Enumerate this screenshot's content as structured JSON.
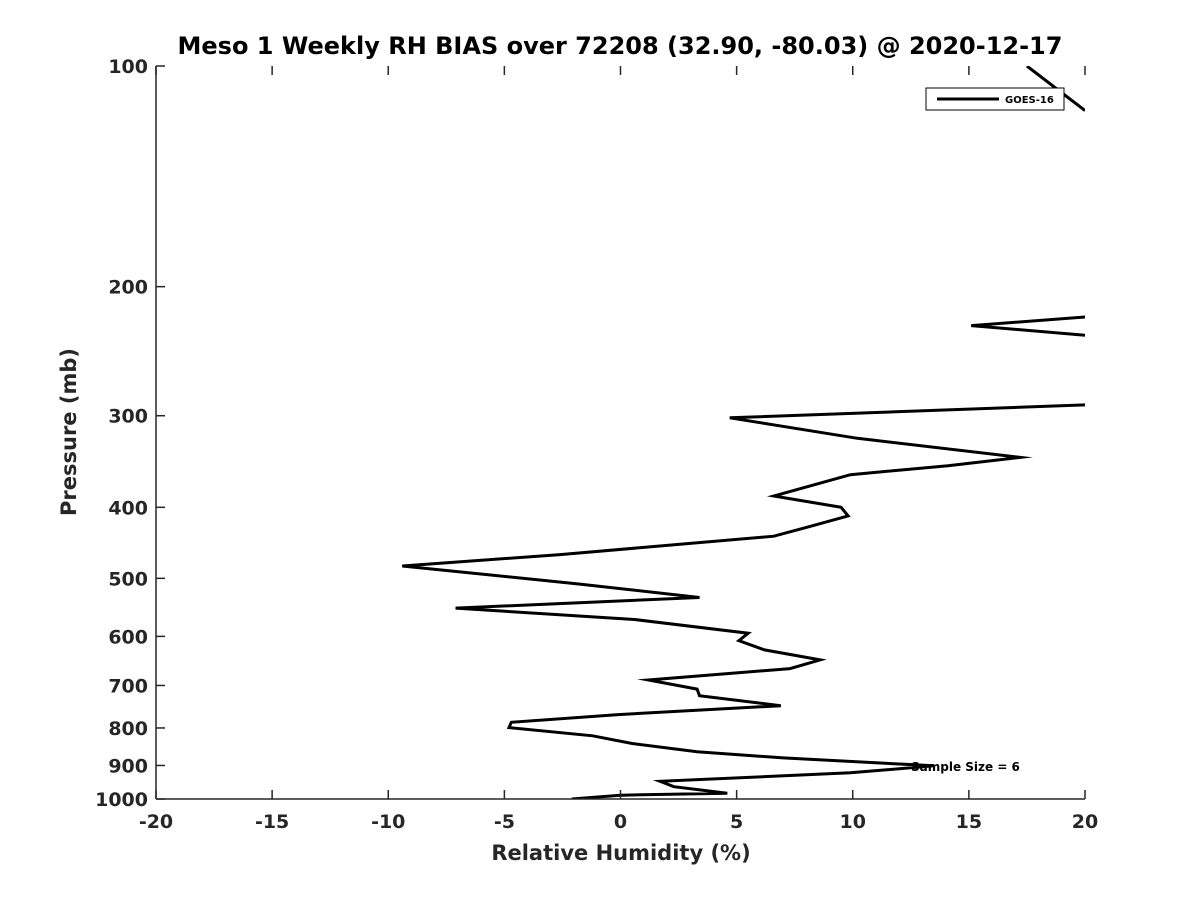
{
  "chart_data": {
    "type": "line",
    "title": "Meso 1 Weekly RH BIAS over 72208 (32.90, -80.03) @ 2020-12-17",
    "xlabel": "Relative Humidity (%)",
    "ylabel": "Pressure (mb)",
    "xlim": [
      -20,
      20
    ],
    "ylim": [
      100,
      1000
    ],
    "yscale": "log",
    "yreversed": true,
    "grid": false,
    "legend_placement": "top-right",
    "x_ticks": [
      "-20",
      "-15",
      "-10",
      "-5",
      "0",
      "5",
      "10",
      "15",
      "20"
    ],
    "y_ticks": [
      "100",
      "200",
      "300",
      "400",
      "500",
      "600",
      "700",
      "800",
      "900",
      "1000"
    ],
    "annotation": "Sample Size = 6",
    "series": [
      {
        "name": "GOES-16",
        "color": "#000000",
        "segments": [
          [
            {
              "x": 17.5,
              "y": 100
            },
            {
              "x": 20.0,
              "y": 115
            }
          ],
          [
            {
              "x": 20.0,
              "y": 220
            },
            {
              "x": 15.1,
              "y": 226
            },
            {
              "x": 20.0,
              "y": 233
            }
          ],
          [
            {
              "x": 20.0,
              "y": 290
            },
            {
              "x": 4.7,
              "y": 302
            },
            {
              "x": 10.2,
              "y": 322
            },
            {
              "x": 17.2,
              "y": 342
            },
            {
              "x": 14.1,
              "y": 351
            },
            {
              "x": 9.9,
              "y": 361
            },
            {
              "x": 6.6,
              "y": 386
            },
            {
              "x": 9.5,
              "y": 400
            },
            {
              "x": 9.8,
              "y": 411
            },
            {
              "x": 8.0,
              "y": 426
            },
            {
              "x": 6.6,
              "y": 438
            },
            {
              "x": -2.6,
              "y": 464
            },
            {
              "x": -9.4,
              "y": 481
            },
            {
              "x": -1.8,
              "y": 509
            },
            {
              "x": 3.4,
              "y": 531
            },
            {
              "x": -7.1,
              "y": 549
            },
            {
              "x": 0.6,
              "y": 569
            },
            {
              "x": 5.5,
              "y": 594
            },
            {
              "x": 5.1,
              "y": 608
            },
            {
              "x": 6.2,
              "y": 626
            },
            {
              "x": 8.6,
              "y": 646
            },
            {
              "x": 7.3,
              "y": 664
            },
            {
              "x": 1.2,
              "y": 688
            },
            {
              "x": 3.3,
              "y": 708
            },
            {
              "x": 3.4,
              "y": 723
            },
            {
              "x": 6.9,
              "y": 746
            },
            {
              "x": -0.1,
              "y": 767
            },
            {
              "x": -4.7,
              "y": 786
            },
            {
              "x": -4.8,
              "y": 799
            },
            {
              "x": -1.2,
              "y": 820
            },
            {
              "x": 0.5,
              "y": 840
            },
            {
              "x": 3.3,
              "y": 862
            },
            {
              "x": 7.0,
              "y": 879
            },
            {
              "x": 13.5,
              "y": 901
            },
            {
              "x": 9.9,
              "y": 921
            },
            {
              "x": 1.7,
              "y": 946
            },
            {
              "x": 2.3,
              "y": 962
            },
            {
              "x": 4.6,
              "y": 982
            },
            {
              "x": 0.0,
              "y": 988
            },
            {
              "x": -2.1,
              "y": 1000
            }
          ]
        ]
      }
    ]
  }
}
